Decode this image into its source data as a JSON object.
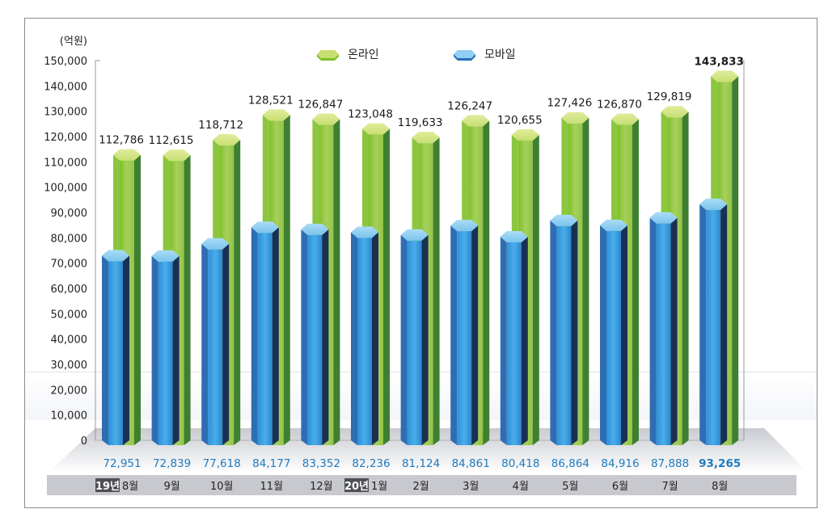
{
  "chart_data": {
    "type": "bar",
    "title": "",
    "unit_label": "(억원)",
    "xlabel": "",
    "ylabel": "(억원)",
    "ylim": [
      0,
      150000
    ],
    "yticks": [
      0,
      10000,
      20000,
      30000,
      40000,
      50000,
      60000,
      70000,
      80000,
      90000,
      100000,
      110000,
      120000,
      130000,
      140000,
      150000
    ],
    "ytick_labels": [
      "0",
      "10,000",
      "20,000",
      "30,000",
      "40,000",
      "50,000",
      "60,000",
      "70,000",
      "80,000",
      "90,000",
      "100,000",
      "110,000",
      "120,000",
      "130,000",
      "140,000",
      "150,000"
    ],
    "grid": false,
    "legend_position": "top-center",
    "categories": [
      {
        "year_badge": "19년",
        "month": "8월"
      },
      {
        "year_badge": "",
        "month": "9월"
      },
      {
        "year_badge": "",
        "month": "10월"
      },
      {
        "year_badge": "",
        "month": "11월"
      },
      {
        "year_badge": "",
        "month": "12월"
      },
      {
        "year_badge": "20년",
        "month": "1월"
      },
      {
        "year_badge": "",
        "month": "2월"
      },
      {
        "year_badge": "",
        "month": "3월"
      },
      {
        "year_badge": "",
        "month": "4월"
      },
      {
        "year_badge": "",
        "month": "5월"
      },
      {
        "year_badge": "",
        "month": "6월"
      },
      {
        "year_badge": "",
        "month": "7월"
      },
      {
        "year_badge": "",
        "month": "8월"
      }
    ],
    "series": [
      {
        "name": "온라인",
        "color": "#8cc63f",
        "values": [
          112786,
          112615,
          118712,
          128521,
          126847,
          123048,
          119633,
          126247,
          120655,
          127426,
          126870,
          129819,
          143833
        ],
        "labels": [
          "112,786",
          "112,615",
          "118,712",
          "128,521",
          "126,847",
          "123,048",
          "119,633",
          "126,247",
          "120,655",
          "127,426",
          "126,870",
          "129,819",
          "143,833"
        ],
        "highlight_last": true
      },
      {
        "name": "모바일",
        "color": "#2b8fd6",
        "values": [
          72951,
          72839,
          77618,
          84177,
          83352,
          82236,
          81124,
          84861,
          80418,
          86864,
          84916,
          87888,
          93265
        ],
        "labels": [
          "72,951",
          "72,839",
          "77,618",
          "84,177",
          "83,352",
          "82,236",
          "81,124",
          "84,861",
          "80,418",
          "86,864",
          "84,916",
          "87,888",
          "93,265"
        ],
        "highlight_last": true
      }
    ]
  }
}
